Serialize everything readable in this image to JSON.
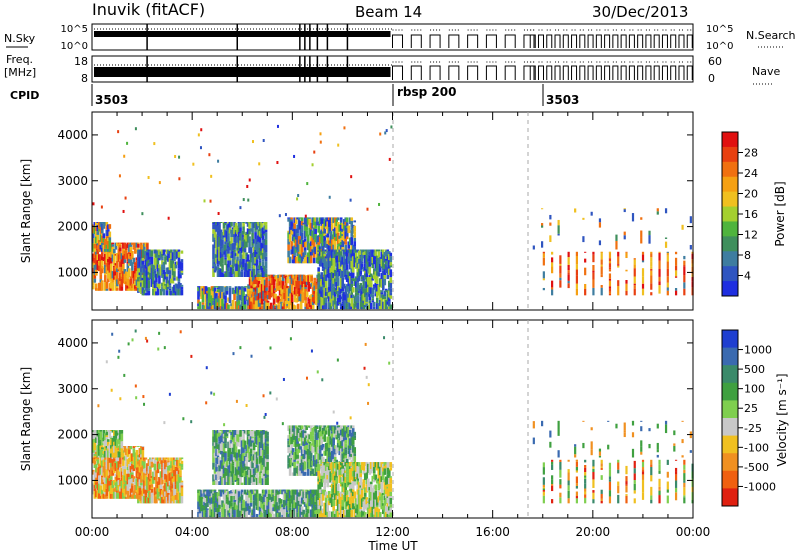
{
  "header": {
    "station": "Inuvik (fitACF)",
    "beam": "Beam 14",
    "date": "30/Dec/2013"
  },
  "top_panels": {
    "nsky_label": "N.Sky",
    "nsky_ticks": [
      "10^5",
      "10^0"
    ],
    "nsearch_label": "N.Search",
    "nsearch_ticks": [
      "10^5",
      "10^0"
    ],
    "freq_label_1": "Freq.",
    "freq_label_2": "[MHz]",
    "freq_ticks": [
      "18",
      "8"
    ],
    "nave_label": "Nave",
    "nave_ticks": [
      "60",
      "0"
    ],
    "cpid_label": "CPID",
    "cpid_segments": [
      {
        "start": 0,
        "label": "3503"
      },
      {
        "start": 12,
        "label": "rbsp 200"
      },
      {
        "start": 17.4,
        "label": "3503"
      }
    ]
  },
  "x_axis": {
    "label": "Time UT",
    "ticks": [
      "00:00",
      "04:00",
      "08:00",
      "12:00",
      "16:00",
      "20:00",
      "00:00"
    ],
    "range_hours": [
      0,
      24
    ]
  },
  "chart_data": [
    {
      "type": "heatmap",
      "name": "power",
      "ylabel": "Slant Range [km]",
      "ylim": [
        180,
        4500
      ],
      "yticks": [
        "1000",
        "2000",
        "3000",
        "4000"
      ],
      "colorbar": {
        "label": "Power [dB]",
        "range": [
          0,
          32
        ],
        "ticks": [
          "4",
          "8",
          "12",
          "16",
          "20",
          "24",
          "28"
        ],
        "colors": [
          "#1f2fe0",
          "#2f55c0",
          "#3e7da0",
          "#3f8f5c",
          "#4fb43d",
          "#a4cf2f",
          "#f0c020",
          "#f5a012",
          "#f07010",
          "#e84010",
          "#e01010"
        ]
      },
      "vertical_markers_hours": [
        12,
        17.4
      ],
      "echo_regions": [
        {
          "t": [
            0,
            2.2
          ],
          "r": [
            600,
            1650
          ],
          "level": "high"
        },
        {
          "t": [
            0,
            0.7
          ],
          "r": [
            1450,
            2100
          ],
          "level": "mid"
        },
        {
          "t": [
            1.8,
            3.6
          ],
          "r": [
            500,
            1500
          ],
          "level": "low"
        },
        {
          "t": [
            4.2,
            6.8
          ],
          "r": [
            200,
            700
          ],
          "level": "mid"
        },
        {
          "t": [
            6.2,
            9.2
          ],
          "r": [
            200,
            950
          ],
          "level": "high"
        },
        {
          "t": [
            4.8,
            6.9
          ],
          "r": [
            900,
            2100
          ],
          "level": "low"
        },
        {
          "t": [
            7.8,
            10.5
          ],
          "r": [
            1200,
            2200
          ],
          "level": "mid"
        },
        {
          "t": [
            9.0,
            11.9
          ],
          "r": [
            200,
            1500
          ],
          "level": "low"
        },
        {
          "t": [
            18,
            24
          ],
          "r": [
            500,
            1450
          ],
          "level": "high"
        },
        {
          "t": [
            17.6,
            24
          ],
          "r": [
            1500,
            2400
          ],
          "level": "sparse"
        }
      ]
    },
    {
      "type": "heatmap",
      "name": "velocity",
      "ylabel": "Slant Range [km]",
      "ylim": [
        180,
        4500
      ],
      "yticks": [
        "1000",
        "2000",
        "3000",
        "4000"
      ],
      "colorbar": {
        "label": "Velocity [m s⁻¹]",
        "ticks": [
          "1000",
          "500",
          "100",
          "25",
          "-25",
          "-100",
          "-500",
          "-1000"
        ],
        "colors": [
          "#1f3fd0",
          "#3a6ab0",
          "#3a8a6a",
          "#3fa040",
          "#7fcf4f",
          "#c8c8c8",
          "#f0c020",
          "#f09020",
          "#f06010",
          "#e02010"
        ]
      },
      "vertical_markers_hours": [
        12,
        17.4
      ],
      "echo_regions": [
        {
          "t": [
            0,
            2.0
          ],
          "r": [
            600,
            1750
          ],
          "level": "neg"
        },
        {
          "t": [
            0,
            1.2
          ],
          "r": [
            1500,
            2100
          ],
          "level": "zero"
        },
        {
          "t": [
            1.8,
            3.6
          ],
          "r": [
            500,
            1500
          ],
          "level": "neg"
        },
        {
          "t": [
            4.2,
            9.2
          ],
          "r": [
            200,
            800
          ],
          "level": "pos"
        },
        {
          "t": [
            4.8,
            7.0
          ],
          "r": [
            900,
            2100
          ],
          "level": "pos"
        },
        {
          "t": [
            7.8,
            10.5
          ],
          "r": [
            1100,
            2200
          ],
          "level": "pos"
        },
        {
          "t": [
            9.0,
            11.9
          ],
          "r": [
            200,
            1400
          ],
          "level": "zero"
        },
        {
          "t": [
            18,
            24
          ],
          "r": [
            500,
            1450
          ],
          "level": "mixed"
        },
        {
          "t": [
            17.6,
            24
          ],
          "r": [
            1500,
            2300
          ],
          "level": "sparse"
        }
      ]
    }
  ]
}
